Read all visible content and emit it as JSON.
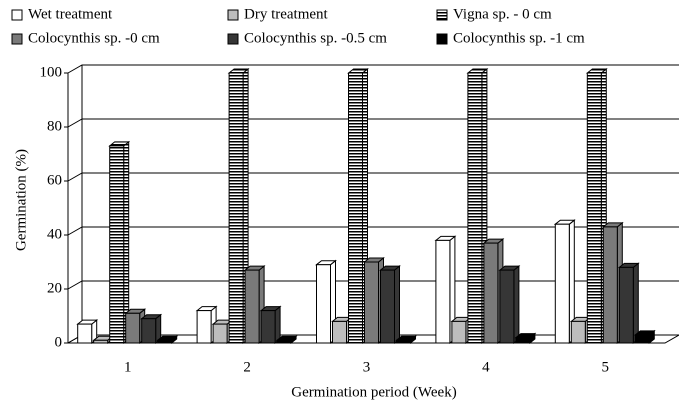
{
  "chart_data": {
    "type": "bar3d",
    "y_label": "Germination (%)",
    "x_label": "Germination period (Week)",
    "categories": [
      "1",
      "2",
      "3",
      "4",
      "5"
    ],
    "series": [
      {
        "name": "Wet treatment",
        "color": "#ffffff",
        "values": [
          7,
          12,
          29,
          38,
          44
        ]
      },
      {
        "name": "Dry treatment",
        "color": "#bdbdbd",
        "values": [
          1,
          7,
          8,
          8,
          8
        ]
      },
      {
        "name": "Vigna sp. - 0 cm",
        "color": "#ffffff",
        "hatch": "horizontal",
        "values": [
          73,
          100,
          100,
          100,
          100
        ]
      },
      {
        "name": "Colocynthis sp. -0 cm",
        "color": "#7a7a7a",
        "values": [
          11,
          27,
          30,
          37,
          43
        ]
      },
      {
        "name": "Colocynthis sp. -0.5 cm",
        "color": "#363636",
        "values": [
          9,
          12,
          27,
          27,
          28
        ]
      },
      {
        "name": "Colocynthis sp. -1 cm",
        "color": "#000000",
        "values": [
          1,
          1,
          1,
          2,
          3
        ]
      }
    ],
    "ylim": [
      0,
      100
    ],
    "yticks": [
      0,
      20,
      40,
      60,
      80,
      100
    ],
    "grid": true,
    "legend": "top"
  }
}
